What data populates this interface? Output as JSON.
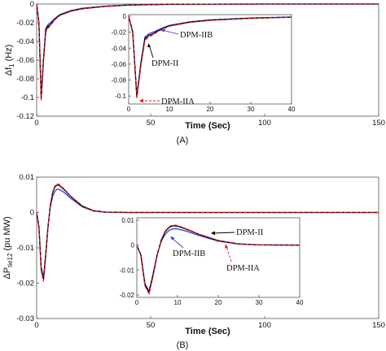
{
  "figure": {
    "panels": [
      {
        "label": "(A)",
        "ylabel": "Δf",
        "ylabel_sub": "1",
        "ylabel_unit": " (Hz)",
        "xlabel": "Time (Sec)",
        "xticks": [
          "0",
          "50",
          "100",
          "150"
        ],
        "yticks": [
          "0",
          "-0.02",
          "-0.04",
          "-0.06",
          "-0.08",
          "-0.1",
          "-0.12"
        ],
        "inset": {
          "xticks": [
            "0",
            "10",
            "20",
            "30",
            "40"
          ],
          "yticks": [
            "0",
            "-0.02",
            "-0.04",
            "-0.06",
            "-0.08",
            "-0.1"
          ],
          "annotations": [
            "DPM-IIB",
            "DPM-II",
            "DPM-IIA"
          ]
        }
      },
      {
        "label": "(B)",
        "ylabel": "ΔP",
        "ylabel_sub": "tie12",
        "ylabel_unit": " (pu MW)",
        "xlabel": "Time (Sec)",
        "xticks": [
          "0",
          "50",
          "100",
          "150"
        ],
        "yticks": [
          "0.01",
          "0",
          "-0.01",
          "-0.02",
          "-0.03"
        ],
        "inset": {
          "xticks": [
            "0",
            "10",
            "20",
            "30",
            "40"
          ],
          "yticks": [
            "0.01",
            "0",
            "-0.01",
            "-0.02"
          ],
          "annotations": [
            "DPM-II",
            "DPM-IIB",
            "DPM-IIA"
          ]
        }
      }
    ]
  },
  "colors": {
    "DPM-II": "#000000",
    "DPM-IIA": "#e41a1c",
    "DPM-IIB": "#1f3fd6"
  },
  "chart_data": [
    {
      "type": "line",
      "xlabel": "Time (Sec)",
      "ylabel": "Δf1 (Hz)",
      "xlim": [
        0,
        150
      ],
      "ylim": [
        -0.12,
        0
      ],
      "grid": false,
      "series": [
        {
          "name": "DPM-II",
          "color": "#000000",
          "dash": "solid",
          "x": [
            0,
            1,
            2,
            3,
            4,
            5,
            6,
            8,
            10,
            15,
            20,
            30,
            40,
            60,
            100,
            150
          ],
          "y": [
            0,
            -0.02,
            -0.101,
            -0.06,
            -0.028,
            -0.024,
            -0.022,
            -0.016,
            -0.012,
            -0.0075,
            -0.005,
            -0.0025,
            -0.0012,
            -0.0002,
            0,
            0
          ]
        },
        {
          "name": "DPM-IIA",
          "color": "#e41a1c",
          "dash": "dashed",
          "x": [
            0,
            1,
            2,
            3,
            4,
            5,
            6,
            8,
            10,
            15,
            20,
            30,
            40,
            60,
            100,
            150
          ],
          "y": [
            0,
            -0.022,
            -0.103,
            -0.062,
            -0.03,
            -0.026,
            -0.023,
            -0.017,
            -0.0125,
            -0.0078,
            -0.0052,
            -0.0026,
            -0.0013,
            -0.0002,
            0,
            0
          ]
        },
        {
          "name": "DPM-IIB",
          "color": "#1f3fd6",
          "dash": "solid",
          "x": [
            0,
            1,
            2,
            3,
            4,
            5,
            6,
            8,
            10,
            15,
            20,
            30,
            40,
            60,
            100,
            150
          ],
          "y": [
            0,
            -0.02,
            -0.1,
            -0.058,
            -0.026,
            -0.022,
            -0.02,
            -0.0155,
            -0.0115,
            -0.007,
            -0.0045,
            -0.0022,
            -0.001,
            -0.0002,
            0,
            0
          ]
        }
      ]
    },
    {
      "type": "line",
      "xlabel": "Time (Sec)",
      "ylabel": "ΔPtie12 (pu MW)",
      "xlim": [
        0,
        150
      ],
      "ylim": [
        -0.03,
        0.01
      ],
      "grid": false,
      "series": [
        {
          "name": "DPM-II",
          "color": "#000000",
          "dash": "solid",
          "x": [
            0,
            1,
            2,
            3,
            4,
            5,
            6,
            7,
            8,
            9,
            10,
            12,
            15,
            20,
            25,
            30,
            40,
            60,
            100,
            150
          ],
          "y": [
            0,
            -0.004,
            -0.016,
            -0.019,
            -0.012,
            -0.004,
            0.002,
            0.0055,
            0.0072,
            0.0078,
            0.0076,
            0.0065,
            0.0045,
            0.0018,
            0.0005,
            0.0001,
            0,
            0,
            0,
            0
          ]
        },
        {
          "name": "DPM-IIA",
          "color": "#e41a1c",
          "dash": "dashed",
          "x": [
            0,
            1,
            2,
            3,
            4,
            5,
            6,
            7,
            8,
            9,
            10,
            12,
            15,
            20,
            25,
            30,
            40,
            60,
            100,
            150
          ],
          "y": [
            0,
            -0.0045,
            -0.0165,
            -0.0195,
            -0.0125,
            -0.0042,
            0.0022,
            0.0058,
            0.0075,
            0.0081,
            0.0079,
            0.0067,
            0.0046,
            0.0019,
            0.0005,
            0.0001,
            0,
            0,
            0,
            0
          ]
        },
        {
          "name": "DPM-IIB",
          "color": "#1f3fd6",
          "dash": "solid",
          "x": [
            0,
            1,
            2,
            3,
            4,
            5,
            6,
            7,
            8,
            9,
            10,
            12,
            15,
            20,
            25,
            30,
            40,
            60,
            100,
            150
          ],
          "y": [
            0,
            -0.004,
            -0.0155,
            -0.0185,
            -0.0115,
            -0.0038,
            0.0015,
            0.0045,
            0.006,
            0.0066,
            0.0065,
            0.0057,
            0.004,
            0.0016,
            0.0004,
            0.0001,
            0,
            0,
            0,
            0
          ]
        }
      ]
    }
  ]
}
